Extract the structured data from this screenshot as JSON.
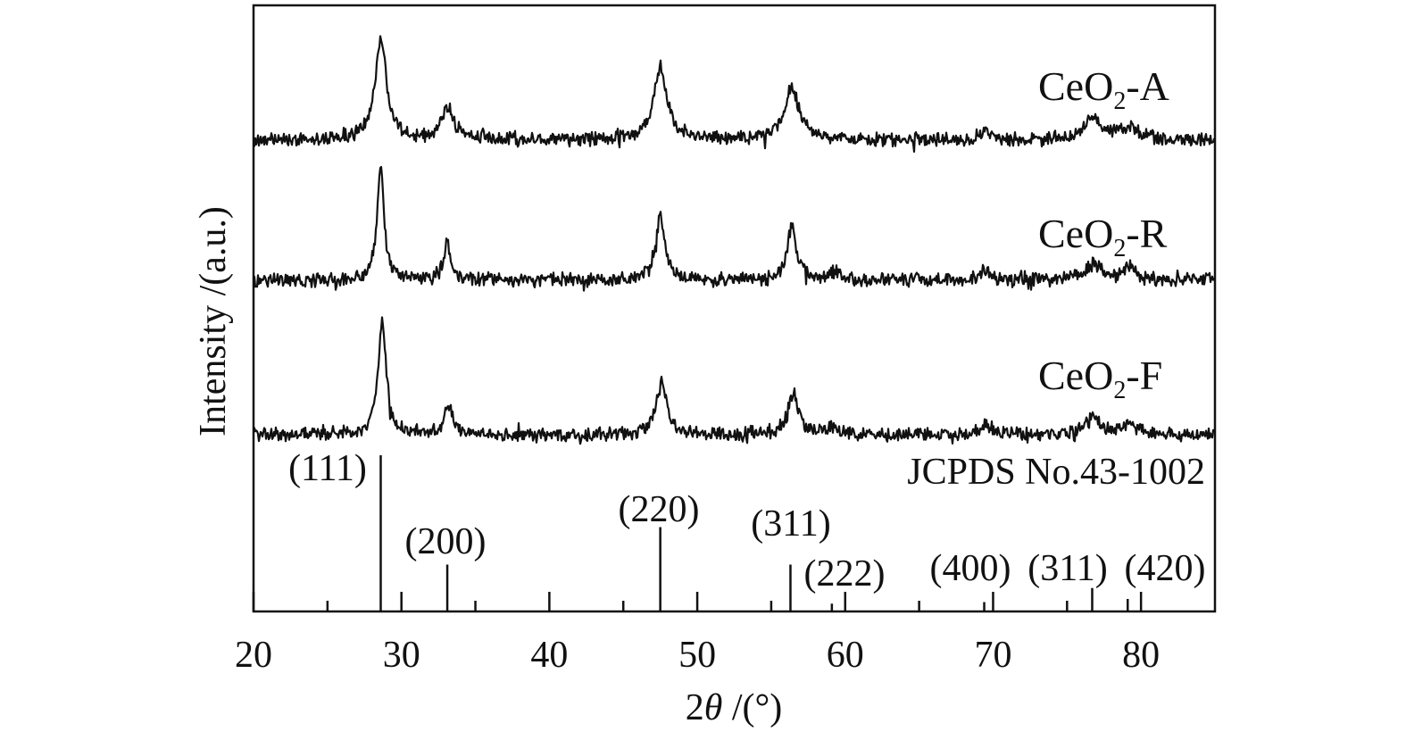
{
  "chart_data": {
    "type": "line",
    "xlabel_prefix": "2",
    "xlabel_theta": "θ",
    "xlabel_suffix": " /(°)",
    "ylabel": "Intensity /(a.u.)",
    "xlim": [
      20,
      85
    ],
    "major_ticks": [
      20,
      30,
      40,
      50,
      60,
      70,
      80
    ],
    "minor_ticks": [
      25,
      35,
      45,
      55,
      65,
      75
    ],
    "tick_labels": [
      "20",
      "30",
      "40",
      "50",
      "60",
      "70",
      "80"
    ],
    "grid": false,
    "series": [
      {
        "name_base": "CeO",
        "name_sub": "2",
        "name_suffix": "-A",
        "peaks": [
          {
            "x": 28.6,
            "height": 0.85,
            "width": 0.9
          },
          {
            "x": 33.1,
            "height": 0.27,
            "width": 1.0
          },
          {
            "x": 47.5,
            "height": 0.6,
            "width": 1.1
          },
          {
            "x": 56.4,
            "height": 0.43,
            "width": 1.2
          },
          {
            "x": 69.5,
            "height": 0.07,
            "width": 1.2
          },
          {
            "x": 76.8,
            "height": 0.17,
            "width": 1.6
          },
          {
            "x": 79.2,
            "height": 0.1,
            "width": 1.4
          }
        ]
      },
      {
        "name_base": "CeO",
        "name_sub": "2",
        "name_suffix": "-R",
        "peaks": [
          {
            "x": 28.6,
            "height": 0.9,
            "width": 0.55
          },
          {
            "x": 33.1,
            "height": 0.3,
            "width": 0.55
          },
          {
            "x": 47.5,
            "height": 0.5,
            "width": 0.75
          },
          {
            "x": 56.4,
            "height": 0.42,
            "width": 0.75
          },
          {
            "x": 59.2,
            "height": 0.06,
            "width": 1.0
          },
          {
            "x": 69.5,
            "height": 0.08,
            "width": 0.9
          },
          {
            "x": 76.8,
            "height": 0.15,
            "width": 1.1
          },
          {
            "x": 79.2,
            "height": 0.09,
            "width": 1.1
          }
        ]
      },
      {
        "name_base": "CeO",
        "name_sub": "2",
        "name_suffix": "-F",
        "peaks": [
          {
            "x": 28.7,
            "height": 0.9,
            "width": 0.65
          },
          {
            "x": 33.2,
            "height": 0.25,
            "width": 0.65
          },
          {
            "x": 47.6,
            "height": 0.45,
            "width": 0.8
          },
          {
            "x": 56.5,
            "height": 0.33,
            "width": 0.8
          },
          {
            "x": 59.2,
            "height": 0.06,
            "width": 1.0
          },
          {
            "x": 69.5,
            "height": 0.07,
            "width": 1.0
          },
          {
            "x": 76.8,
            "height": 0.13,
            "width": 1.3
          },
          {
            "x": 79.2,
            "height": 0.08,
            "width": 1.2
          }
        ]
      }
    ],
    "reference": {
      "label": "JCPDS No.43-1002",
      "lines": [
        {
          "x": 28.6,
          "hkl": "(111)",
          "intensity": 100
        },
        {
          "x": 33.1,
          "hkl": "(200)",
          "intensity": 30
        },
        {
          "x": 47.5,
          "hkl": "(220)",
          "intensity": 54
        },
        {
          "x": 56.3,
          "hkl": "(311)",
          "intensity": 30
        },
        {
          "x": 59.1,
          "hkl": "(222)",
          "intensity": 5
        },
        {
          "x": 69.4,
          "hkl": "(400)",
          "intensity": 6
        },
        {
          "x": 76.7,
          "hkl": "(311)",
          "intensity": 15
        },
        {
          "x": 79.1,
          "hkl": "(420)",
          "intensity": 8
        }
      ]
    }
  }
}
